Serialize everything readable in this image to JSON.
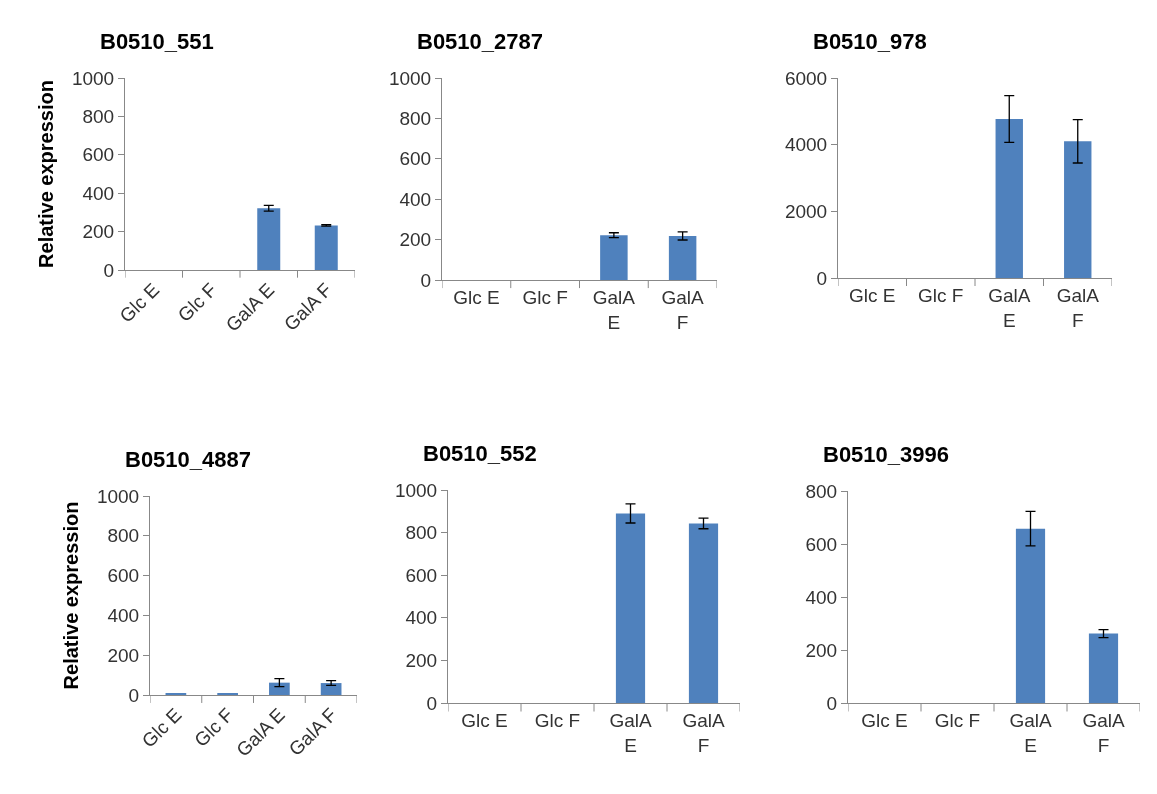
{
  "chart_data": [
    {
      "type": "bar",
      "title": "B0510_551",
      "ylabel": "Relative expression",
      "categories": [
        "Glc E",
        "Glc F",
        "GalA E",
        "GalA F"
      ],
      "values": [
        0,
        0,
        322,
        232
      ],
      "errors": [
        null,
        null,
        15,
        4
      ],
      "color": "#4f81bd",
      "ylim": [
        0,
        1000
      ],
      "yticks": [
        0,
        200,
        400,
        600,
        800,
        1000
      ],
      "grid": false,
      "legend": false
    },
    {
      "type": "bar",
      "title": "B0510_2787",
      "categories": [
        "Glc E",
        "Glc F",
        "GalA E",
        "GalA F"
      ],
      "values": [
        0,
        0,
        222,
        218
      ],
      "errors": [
        null,
        null,
        12,
        20
      ],
      "color": "#4f81bd",
      "ylim": [
        0,
        1000
      ],
      "yticks": [
        0,
        200,
        400,
        600,
        800,
        1000
      ],
      "grid": false,
      "legend": false
    },
    {
      "type": "bar",
      "title": "B0510_978",
      "categories": [
        "Glc E",
        "Glc F",
        "GalA E",
        "GalA F"
      ],
      "values": [
        0,
        0,
        4770,
        4100
      ],
      "errors": [
        null,
        null,
        700,
        650
      ],
      "color": "#4f81bd",
      "ylim": [
        0,
        6000
      ],
      "yticks": [
        0,
        2000,
        4000,
        6000
      ],
      "grid": false,
      "legend": false
    },
    {
      "type": "bar",
      "title": "B0510_4887",
      "ylabel": "Relative expression",
      "categories": [
        "Glc E",
        "Glc F",
        "GalA E",
        "GalA F"
      ],
      "values": [
        10,
        10,
        62,
        60
      ],
      "errors": [
        null,
        null,
        20,
        12
      ],
      "color": "#4f81bd",
      "ylim": [
        0,
        1000
      ],
      "yticks": [
        0,
        200,
        400,
        600,
        800,
        1000
      ],
      "grid": false,
      "legend": false
    },
    {
      "type": "bar",
      "title": "B0510_552",
      "categories": [
        "Glc E",
        "Glc F",
        "GalA E",
        "GalA F"
      ],
      "values": [
        0,
        0,
        890,
        843
      ],
      "errors": [
        null,
        null,
        45,
        25
      ],
      "color": "#4f81bd",
      "ylim": [
        0,
        1000
      ],
      "yticks": [
        0,
        200,
        400,
        600,
        800,
        1000
      ],
      "grid": false,
      "legend": false
    },
    {
      "type": "bar",
      "title": "B0510_3996",
      "categories": [
        "Glc E",
        "Glc F",
        "GalA E",
        "GalA F"
      ],
      "values": [
        0,
        0,
        658,
        262
      ],
      "errors": [
        null,
        null,
        65,
        15
      ],
      "color": "#4f81bd",
      "ylim": [
        0,
        800
      ],
      "yticks": [
        0,
        200,
        400,
        600,
        800
      ],
      "grid": false,
      "legend": false
    }
  ]
}
